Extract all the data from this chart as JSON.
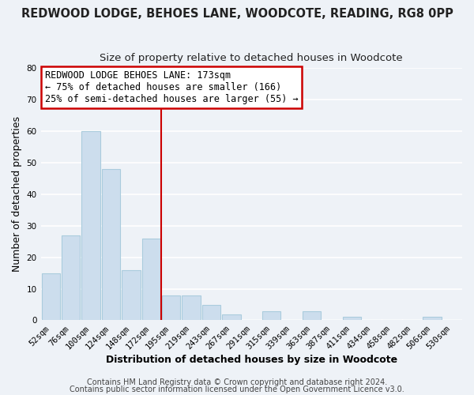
{
  "title": "REDWOOD LODGE, BEHOES LANE, WOODCOTE, READING, RG8 0PP",
  "subtitle": "Size of property relative to detached houses in Woodcote",
  "xlabel": "Distribution of detached houses by size in Woodcote",
  "ylabel": "Number of detached properties",
  "bar_color": "#ccdded",
  "bar_edge_color": "#aaccdd",
  "bin_labels": [
    "52sqm",
    "76sqm",
    "100sqm",
    "124sqm",
    "148sqm",
    "172sqm",
    "195sqm",
    "219sqm",
    "243sqm",
    "267sqm",
    "291sqm",
    "315sqm",
    "339sqm",
    "363sqm",
    "387sqm",
    "411sqm",
    "434sqm",
    "458sqm",
    "482sqm",
    "506sqm",
    "530sqm"
  ],
  "bar_heights": [
    15,
    27,
    60,
    48,
    16,
    26,
    8,
    8,
    5,
    2,
    0,
    3,
    0,
    3,
    0,
    1,
    0,
    0,
    0,
    1,
    0
  ],
  "vline_color": "#cc0000",
  "ylim": [
    0,
    80
  ],
  "yticks": [
    0,
    10,
    20,
    30,
    40,
    50,
    60,
    70,
    80
  ],
  "annotation_title": "REDWOOD LODGE BEHOES LANE: 173sqm",
  "annotation_line1": "← 75% of detached houses are smaller (166)",
  "annotation_line2": "25% of semi-detached houses are larger (55) →",
  "annotation_box_color": "#ffffff",
  "annotation_box_edge": "#cc0000",
  "footer1": "Contains HM Land Registry data © Crown copyright and database right 2024.",
  "footer2": "Contains public sector information licensed under the Open Government Licence v3.0.",
  "background_color": "#eef2f7",
  "plot_bg_color": "#eef2f7",
  "grid_color": "#ffffff",
  "title_fontsize": 10.5,
  "subtitle_fontsize": 9.5,
  "axis_label_fontsize": 9,
  "tick_fontsize": 7.5,
  "footer_fontsize": 7,
  "annotation_fontsize": 8.5
}
